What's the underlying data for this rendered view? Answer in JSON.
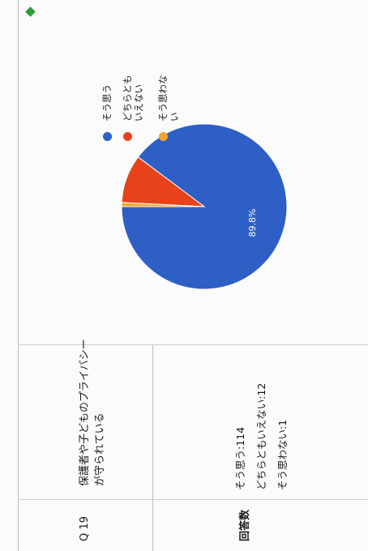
{
  "question": {
    "number": "Q 19",
    "text_line1": "保護者や子どものプライバシー",
    "text_line2": "が守られている"
  },
  "answers_header": "回答数",
  "answers": [
    {
      "label": "そう思う",
      "count": 114
    },
    {
      "label": "どちらともいえない",
      "count": 12
    },
    {
      "label": "そう思わない",
      "count": 1
    }
  ],
  "answer_lines": [
    "そう思う:114",
    "どちらともいえない:12",
    "そう思わない:1"
  ],
  "legend": [
    {
      "line1": "そう思う",
      "line2": "",
      "color": "#2e5fc4"
    },
    {
      "line1": "どちらとも",
      "line2": "いえない",
      "color": "#e8421b"
    },
    {
      "line1": "そう思わな",
      "line2": "い",
      "color": "#f6a623"
    }
  ],
  "chart_data": {
    "type": "pie",
    "categories": [
      "そう思う",
      "どちらともいえない",
      "そう思わない"
    ],
    "values": [
      114,
      12,
      1
    ],
    "colors": [
      "#2e5fc4",
      "#e8421b",
      "#f6a623"
    ],
    "data_labels": [
      "89.8%",
      "",
      ""
    ]
  }
}
